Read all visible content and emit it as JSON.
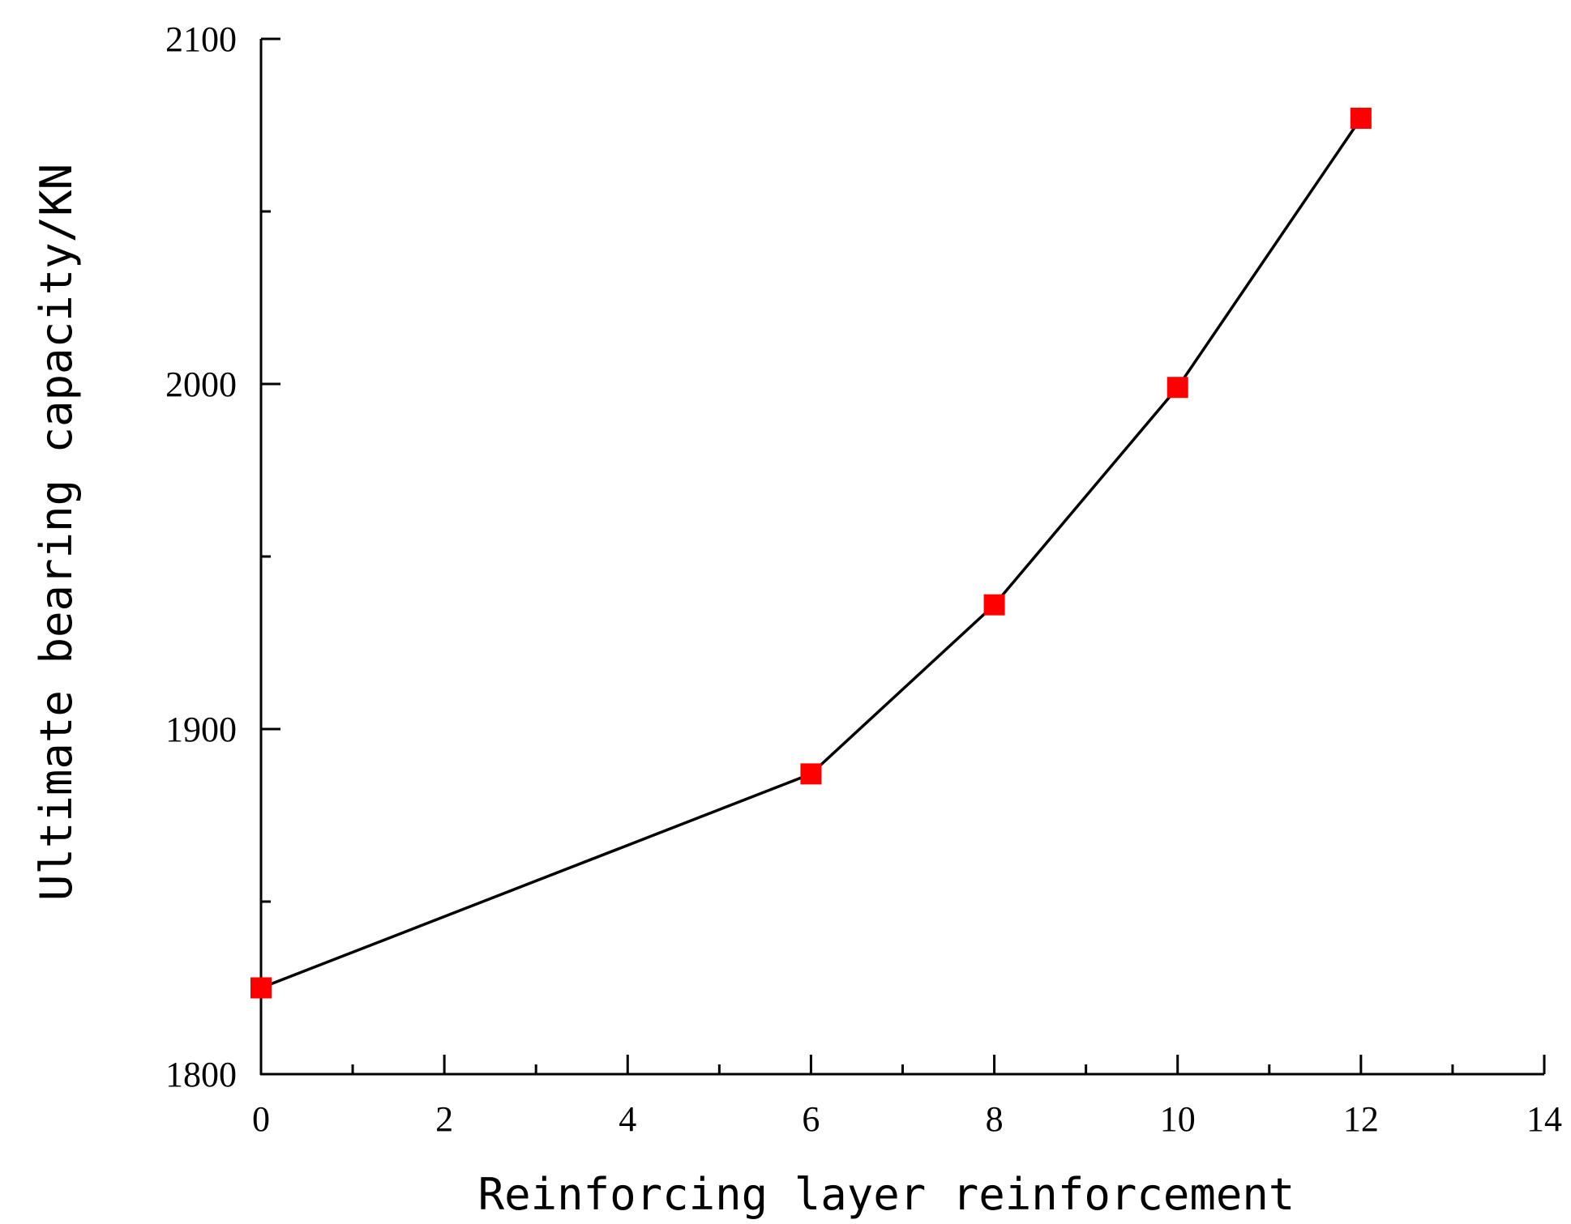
{
  "chart_data": {
    "type": "line",
    "title": "",
    "xlabel": "Reinforcing layer reinforcement",
    "ylabel": "Ultimate bearing capacity/KN",
    "xlim": [
      0,
      14
    ],
    "ylim": [
      1800,
      2100
    ],
    "x_ticks": [
      0,
      2,
      4,
      6,
      8,
      10,
      12,
      14
    ],
    "y_ticks": [
      1800,
      1900,
      2000,
      2100
    ],
    "grid": false,
    "legend": "none",
    "series": [
      {
        "color": "#000000",
        "marker": "square",
        "marker_color": "#ff0000",
        "x": [
          0,
          6,
          8,
          10,
          12
        ],
        "y": [
          1825,
          1887,
          1936,
          1999,
          2077
        ]
      }
    ]
  }
}
